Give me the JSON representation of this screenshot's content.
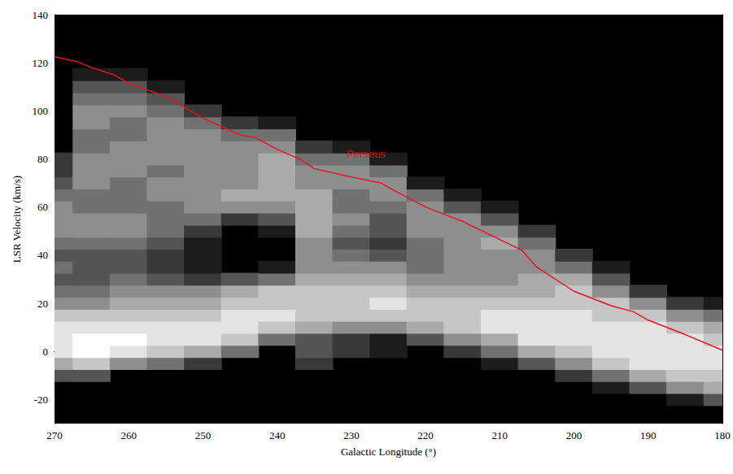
{
  "chart_data": {
    "type": "line",
    "x_label": "Galactic Longitude (°)",
    "y_label": "LSR Velocity (km/s)",
    "xlim": [
      270,
      180
    ],
    "xticks": [
      270,
      260,
      250,
      240,
      230,
      220,
      210,
      200,
      190,
      180
    ],
    "ylim": [
      -30,
      140
    ],
    "yticks": [
      -20,
      0,
      20,
      40,
      60,
      80,
      100,
      120,
      140
    ],
    "grid": false,
    "series": [
      {
        "name": "Perseus",
        "color": "#e8121b",
        "line_style": "solid",
        "x": [
          270,
          267,
          265,
          262,
          260,
          255,
          250,
          245,
          243,
          240,
          237,
          235,
          230,
          226,
          224,
          220,
          215,
          210,
          207,
          205,
          200,
          195,
          192,
          190,
          185,
          180
        ],
        "values": [
          122.5,
          120.5,
          118,
          115,
          111.5,
          106,
          97,
          90,
          89,
          84,
          80,
          76,
          72.5,
          70,
          66.5,
          60,
          54,
          46.5,
          42,
          35,
          25,
          19,
          16.5,
          13,
          7,
          0.5
        ]
      }
    ],
    "annotations": [
      {
        "text": "Perseus",
        "x": 228,
        "y": 82,
        "color": "#e8121b"
      }
    ],
    "emission": {
      "longitude": [
        270,
        265,
        260,
        255,
        250,
        245,
        240,
        235,
        230,
        225,
        220,
        215,
        210,
        205,
        200,
        195,
        190,
        185,
        180
      ],
      "velocity": [
        -20,
        -15,
        -10,
        -5,
        0,
        5,
        10,
        15,
        20,
        25,
        30,
        35,
        40,
        45,
        50,
        55,
        60,
        65,
        70,
        75,
        80,
        85,
        90,
        95,
        100,
        105,
        110,
        115
      ],
      "intensity_range": [
        0,
        9
      ],
      "intensity": [
        [
          0,
          0,
          3,
          6,
          8,
          8,
          8,
          7,
          5,
          4,
          3,
          4,
          3,
          4,
          5,
          5,
          5,
          4,
          3,
          2,
          2,
          0,
          0,
          0,
          0,
          0,
          0,
          0
        ],
        [
          0,
          0,
          3,
          7,
          9,
          9,
          8,
          7,
          5,
          4,
          3,
          3,
          3,
          4,
          5,
          5,
          4,
          4,
          5,
          5,
          5,
          4,
          4,
          5,
          5,
          4,
          3,
          1
        ],
        [
          0,
          0,
          0,
          5,
          8,
          9,
          8,
          7,
          6,
          5,
          4,
          3,
          3,
          4,
          5,
          5,
          4,
          4,
          4,
          5,
          5,
          5,
          4,
          4,
          5,
          4,
          3,
          1
        ],
        [
          0,
          0,
          0,
          4,
          7,
          8,
          8,
          7,
          6,
          5,
          3,
          2,
          2,
          3,
          4,
          4,
          4,
          5,
          5,
          4,
          5,
          5,
          5,
          5,
          4,
          3,
          1,
          0
        ],
        [
          0,
          0,
          0,
          2,
          6,
          8,
          8,
          7,
          6,
          5,
          2,
          1,
          1,
          1,
          2,
          4,
          5,
          5,
          5,
          5,
          5,
          5,
          5,
          4,
          2,
          0,
          0,
          0
        ],
        [
          0,
          0,
          0,
          0,
          4,
          7,
          8,
          8,
          7,
          6,
          3,
          0,
          0,
          0,
          0,
          2,
          5,
          6,
          5,
          5,
          5,
          5,
          4,
          2,
          0,
          0,
          0,
          0
        ],
        [
          0,
          0,
          0,
          0,
          0,
          4,
          7,
          8,
          7,
          7,
          4,
          1,
          0,
          0,
          1,
          3,
          5,
          6,
          6,
          6,
          6,
          5,
          4,
          1,
          0,
          0,
          0,
          0
        ],
        [
          0,
          0,
          0,
          2,
          3,
          3,
          6,
          7,
          7,
          7,
          6,
          5,
          5,
          5,
          6,
          6,
          6,
          6,
          5,
          5,
          4,
          2,
          0,
          0,
          0,
          0,
          0,
          0
        ],
        [
          0,
          0,
          0,
          0,
          2,
          2,
          5,
          7,
          7,
          7,
          6,
          5,
          4,
          3,
          4,
          5,
          4,
          4,
          5,
          5,
          4,
          1,
          0,
          0,
          0,
          0,
          0,
          0
        ],
        [
          0,
          0,
          0,
          0,
          1,
          1,
          5,
          7,
          8,
          7,
          6,
          5,
          3,
          2,
          3,
          3,
          4,
          5,
          5,
          4,
          1,
          0,
          0,
          0,
          0,
          0,
          0,
          0
        ],
        [
          0,
          0,
          0,
          0,
          0,
          3,
          6,
          7,
          7,
          6,
          5,
          4,
          4,
          4,
          5,
          5,
          5,
          4,
          1,
          0,
          0,
          0,
          0,
          0,
          0,
          0,
          0,
          0
        ],
        [
          0,
          0,
          0,
          0,
          2,
          5,
          7,
          7,
          7,
          6,
          5,
          5,
          5,
          5,
          5,
          5,
          3,
          1,
          0,
          0,
          0,
          0,
          0,
          0,
          0,
          0,
          0,
          0
        ],
        [
          0,
          0,
          0,
          1,
          4,
          6,
          8,
          8,
          7,
          6,
          5,
          5,
          5,
          6,
          5,
          3,
          1,
          0,
          0,
          0,
          0,
          0,
          0,
          0,
          0,
          0,
          0,
          0
        ],
        [
          0,
          0,
          0,
          3,
          6,
          8,
          8,
          8,
          7,
          6,
          6,
          5,
          5,
          4,
          2,
          0,
          0,
          0,
          0,
          0,
          0,
          0,
          0,
          0,
          0,
          0,
          0,
          0
        ],
        [
          0,
          0,
          2,
          5,
          7,
          8,
          8,
          8,
          7,
          7,
          6,
          4,
          2,
          0,
          0,
          0,
          0,
          0,
          0,
          0,
          0,
          0,
          0,
          0,
          0,
          0,
          0,
          0
        ],
        [
          0,
          1,
          4,
          7,
          8,
          8,
          8,
          7,
          7,
          5,
          3,
          1,
          0,
          0,
          0,
          0,
          0,
          0,
          0,
          0,
          0,
          0,
          0,
          0,
          0,
          0,
          0,
          0
        ],
        [
          0,
          3,
          6,
          8,
          8,
          8,
          8,
          7,
          5,
          2,
          0,
          0,
          0,
          0,
          0,
          0,
          0,
          0,
          0,
          0,
          0,
          0,
          0,
          0,
          0,
          0,
          0,
          0
        ],
        [
          1,
          5,
          7,
          8,
          8,
          8,
          7,
          5,
          2,
          0,
          0,
          0,
          0,
          0,
          0,
          0,
          0,
          0,
          0,
          0,
          0,
          0,
          0,
          0,
          0,
          0,
          0,
          0
        ],
        [
          3,
          6,
          7,
          8,
          8,
          7,
          6,
          4,
          1,
          0,
          0,
          0,
          0,
          0,
          0,
          0,
          0,
          0,
          0,
          0,
          0,
          0,
          0,
          0,
          0,
          0,
          0,
          0
        ]
      ]
    }
  }
}
